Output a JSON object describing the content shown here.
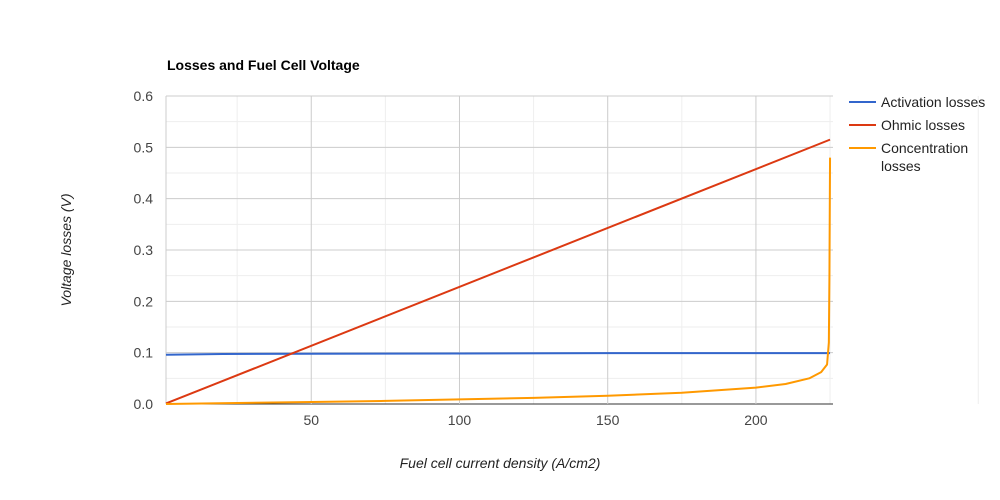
{
  "chart_data": {
    "type": "line",
    "title": "Losses and Fuel Cell Voltage",
    "xlabel": "Fuel cell current density (A/cm2)",
    "ylabel": "Voltage losses (V)",
    "xlim": [
      1,
      226
    ],
    "ylim": [
      0,
      0.6
    ],
    "xticks": [
      50,
      100,
      150,
      200
    ],
    "yticks": [
      0.0,
      0.1,
      0.2,
      0.3,
      0.4,
      0.5,
      0.6
    ],
    "grid": true,
    "legend_position": "right",
    "series": [
      {
        "name": "Activation losses",
        "color": "#3366cc",
        "x": [
          1,
          20,
          50,
          100,
          150,
          200,
          225
        ],
        "y": [
          0.096,
          0.0975,
          0.098,
          0.0985,
          0.099,
          0.099,
          0.099
        ]
      },
      {
        "name": "Ohmic losses",
        "color": "#dc3912",
        "x": [
          1,
          225
        ],
        "y": [
          0.001,
          0.515
        ]
      },
      {
        "name": "Concentration losses",
        "color": "#ff9900",
        "x": [
          1,
          25,
          50,
          75,
          100,
          125,
          150,
          175,
          200,
          210,
          218,
          222,
          224,
          224.6,
          224.8,
          225
        ],
        "y": [
          0.0,
          0.002,
          0.004,
          0.006,
          0.009,
          0.012,
          0.016,
          0.022,
          0.032,
          0.039,
          0.05,
          0.062,
          0.077,
          0.12,
          0.25,
          0.48
        ]
      }
    ]
  }
}
